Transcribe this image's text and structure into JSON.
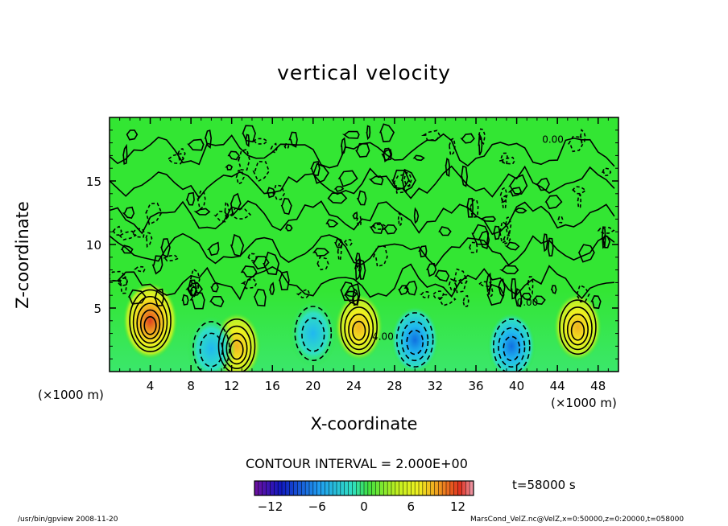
{
  "chart_data": {
    "type": "heatmap",
    "title": "vertical velocity",
    "xlabel": "X-coordinate",
    "ylabel": "Z-coordinate",
    "x_unit": "(×1000 m)",
    "xlim": [
      0,
      50
    ],
    "ylim": [
      0,
      20
    ],
    "x_ticks": [
      4,
      8,
      12,
      16,
      20,
      24,
      28,
      32,
      36,
      40,
      44,
      48
    ],
    "y_ticks": [
      5,
      10,
      15
    ],
    "contour_interval_text": "CONTOUR INTERVAL = 2.000E+00",
    "time_text": "t=58000 s",
    "colorbar": {
      "range": [
        -14,
        14
      ],
      "ticks": [
        -12,
        -6,
        0,
        6,
        12
      ],
      "tick_labels": [
        "−12",
        "−6",
        "0",
        "6",
        "12"
      ]
    },
    "contour_labels": [
      {
        "x": 40,
        "y": 5.2,
        "text": "0.00"
      },
      {
        "x": 25.8,
        "y": 2.5,
        "text": "4.00"
      },
      {
        "x": 42.5,
        "y": 18,
        "text": "0.00"
      }
    ],
    "features": [
      {
        "x": 4,
        "z": 4.0,
        "sign": "updraft",
        "peak": 12
      },
      {
        "x": 12.5,
        "z": 2.0,
        "sign": "updraft",
        "peak": 8
      },
      {
        "x": 24.5,
        "z": 3.5,
        "sign": "updraft",
        "peak": 8
      },
      {
        "x": 46,
        "z": 3.5,
        "sign": "updraft",
        "peak": 8
      },
      {
        "x": 10,
        "z": 1.8,
        "sign": "downdraft",
        "peak": -4
      },
      {
        "x": 20,
        "z": 3.0,
        "sign": "downdraft",
        "peak": -4
      },
      {
        "x": 30,
        "z": 2.5,
        "sign": "downdraft",
        "peak": -6
      },
      {
        "x": 39.5,
        "z": 2.0,
        "sign": "downdraft",
        "peak": -6
      }
    ]
  },
  "footer": {
    "left": "/usr/bin/gpview  2008-11-20",
    "right": "MarsCond_VelZ.nc@VelZ,x=0:50000,z=0:20000,t=058000"
  },
  "colors": {
    "background_field": "#33e633",
    "updraft": "#f08020",
    "downdraft": "#20b0f0",
    "contour": "#000000"
  }
}
